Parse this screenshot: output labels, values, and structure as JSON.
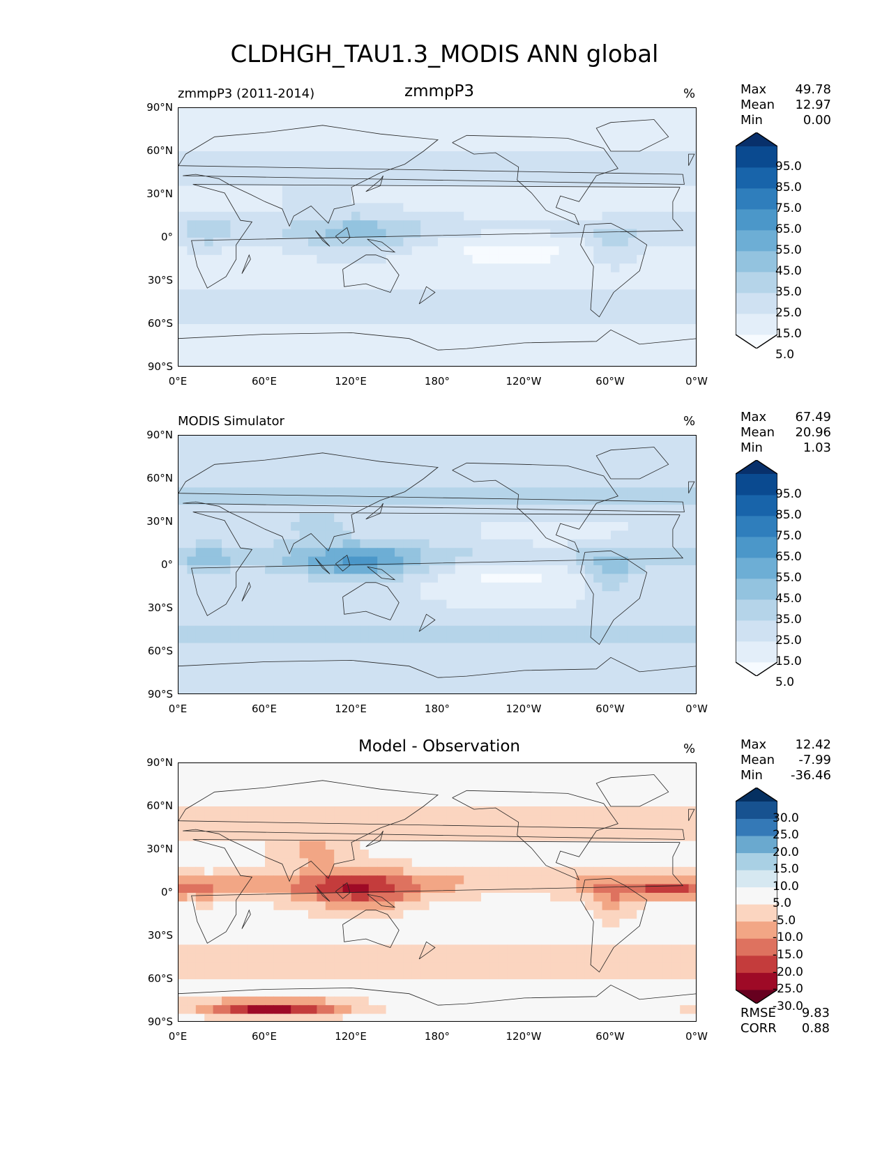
{
  "title": "CLDHGH_TAU1.3_MODIS ANN global",
  "lat_ticks": [
    "90°N",
    "60°N",
    "30°N",
    "0°",
    "30°S",
    "60°S",
    "90°S"
  ],
  "lon_ticks": [
    "0°E",
    "60°E",
    "120°E",
    "180°",
    "120°W",
    "60°W",
    "0°W"
  ],
  "panels": [
    {
      "id": "test",
      "left_title": "zmmpP3 (2011-2014)",
      "center_title": "zmmpP3",
      "units": "%",
      "stats": {
        "max_label": "Max",
        "max": "49.78",
        "mean_label": "Mean",
        "mean": "12.97",
        "min_label": "Min",
        "min": "0.00"
      },
      "colorbar_labels": [
        "95.0",
        "85.0",
        "75.0",
        "65.0",
        "55.0",
        "45.0",
        "35.0",
        "25.0",
        "15.0",
        "5.0"
      ],
      "colors": [
        "#f7fbff",
        "#e3eef9",
        "#cfe1f2",
        "#b5d4e9",
        "#93c3df",
        "#6daed5",
        "#4b97c9",
        "#2f7ebc",
        "#1864aa",
        "#0a4a90",
        "#08306b"
      ],
      "field": "test"
    },
    {
      "id": "ref",
      "left_title": "MODIS Simulator",
      "center_title": "",
      "units": "%",
      "stats": {
        "max_label": "Max",
        "max": "67.49",
        "mean_label": "Mean",
        "mean": "20.96",
        "min_label": "Min",
        "min": "1.03"
      },
      "colorbar_labels": [
        "95.0",
        "85.0",
        "75.0",
        "65.0",
        "55.0",
        "45.0",
        "35.0",
        "25.0",
        "15.0",
        "5.0"
      ],
      "colors": [
        "#f7fbff",
        "#e3eef9",
        "#cfe1f2",
        "#b5d4e9",
        "#93c3df",
        "#6daed5",
        "#4b97c9",
        "#2f7ebc",
        "#1864aa",
        "#0a4a90",
        "#08306b"
      ],
      "field": "ref"
    },
    {
      "id": "diff",
      "left_title": "",
      "center_title": "Model - Observation",
      "units": "%",
      "stats": {
        "max_label": "Max",
        "max": "12.42",
        "mean_label": "Mean",
        "mean": "-7.99",
        "min_label": "Min",
        "min": "-36.46"
      },
      "colorbar_labels": [
        "30.0",
        "25.0",
        "20.0",
        "15.0",
        "10.0",
        "5.0",
        "-5.0",
        "-10.0",
        "-15.0",
        "-20.0",
        "-25.0",
        "-30.0"
      ],
      "colors": [
        "#67001f",
        "#9e0a26",
        "#c43c3c",
        "#de725f",
        "#f2a685",
        "#fbd5c0",
        "#f7f7f7",
        "#d6e8f1",
        "#a9d0e4",
        "#6aa9cf",
        "#3479b7",
        "#175290",
        "#053061"
      ],
      "field": "diff"
    }
  ],
  "metrics": {
    "rmse_label": "RMSE",
    "rmse": "9.83",
    "corr_label": "CORR",
    "corr": "0.88"
  }
}
